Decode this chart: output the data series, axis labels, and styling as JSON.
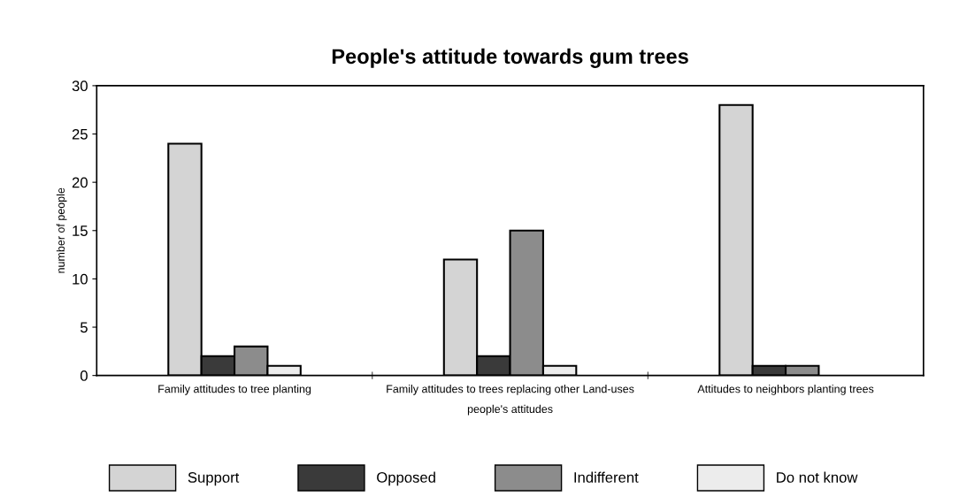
{
  "chart_data": {
    "type": "bar",
    "title": "People's attitude towards gum trees",
    "xlabel": "people's attitudes",
    "ylabel": "number of people",
    "categories": [
      "Family attitudes to tree planting",
      "Family attitudes to trees replacing other Land-uses",
      "Attitudes to neighbors planting trees"
    ],
    "series": [
      {
        "name": "Support",
        "color": "#d4d4d4",
        "values": [
          24,
          12,
          28
        ]
      },
      {
        "name": "Opposed",
        "color": "#3a3a3a",
        "values": [
          2,
          2,
          1
        ]
      },
      {
        "name": "Indifferent",
        "color": "#8c8c8c",
        "values": [
          3,
          15,
          1
        ]
      },
      {
        "name": "Do not know",
        "color": "#ececec",
        "values": [
          1,
          1,
          0
        ]
      }
    ],
    "ylim": [
      0,
      30
    ],
    "yticks": [
      0,
      5,
      10,
      15,
      20,
      25,
      30
    ],
    "grid": false,
    "legend": "bottom"
  }
}
